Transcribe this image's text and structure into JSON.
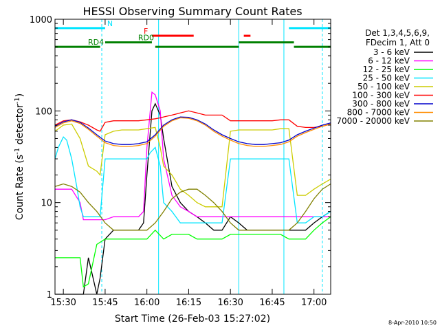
{
  "chart_data": {
    "type": "line",
    "title": "HESSI Observing Summary Count Rates",
    "xlabel": "Start Time (26-Feb-03 15:27:02)",
    "ylabel_main": "Count Rate (s",
    "ylabel_sup1": "-1",
    "ylabel_mid": " detector",
    "ylabel_sup2": "-1",
    "ylabel_end": ")",
    "y_scale": "log",
    "ylim": [
      1,
      1000
    ],
    "xlim_minutes": [
      15.45,
      17.1
    ],
    "x_ticks": [
      {
        "label": "15:30",
        "value": 15.5
      },
      {
        "label": "15:45",
        "value": 15.75
      },
      {
        "label": "16:00",
        "value": 16.0
      },
      {
        "label": "16:15",
        "value": 16.25
      },
      {
        "label": "16:30",
        "value": 16.5
      },
      {
        "label": "16:45",
        "value": 16.75
      },
      {
        "label": "17:00",
        "value": 17.0
      }
    ],
    "y_ticks": [
      {
        "label": "1",
        "value": 1
      },
      {
        "label": "10",
        "value": 10
      },
      {
        "label": "100",
        "value": 100
      },
      {
        "label": "1000",
        "value": 1000
      }
    ],
    "legend_header": [
      "Det 1,3,4,5,6,9,",
      "FDecim 1, Att 0"
    ],
    "legend_position": "right",
    "series": [
      {
        "name": "3 - 6 keV",
        "color": "#000000",
        "x": [
          15.45,
          15.5,
          15.55,
          15.6,
          15.62,
          15.65,
          15.7,
          15.72,
          15.75,
          15.8,
          15.85,
          15.9,
          15.95,
          15.98,
          16.0,
          16.03,
          16.05,
          16.08,
          16.1,
          16.15,
          16.2,
          16.25,
          16.3,
          16.35,
          16.4,
          16.45,
          16.5,
          16.55,
          16.6,
          16.65,
          16.7,
          16.75,
          16.8,
          16.85,
          16.9,
          16.95,
          17.0,
          17.05,
          17.1
        ],
        "y": [
          1,
          1,
          1,
          1,
          1,
          2.5,
          1,
          1.5,
          4,
          5,
          5,
          5,
          5,
          6,
          20,
          100,
          120,
          90,
          50,
          15,
          10,
          8,
          7,
          6,
          5,
          5,
          7,
          6,
          5,
          5,
          5,
          5,
          5,
          5,
          5,
          5,
          6,
          7,
          8
        ]
      },
      {
        "name": "6 - 12 keV",
        "color": "#ff00ff",
        "x": [
          15.45,
          15.5,
          15.55,
          15.6,
          15.62,
          15.65,
          15.7,
          15.75,
          15.8,
          15.85,
          15.9,
          15.95,
          15.98,
          16.0,
          16.03,
          16.05,
          16.08,
          16.1,
          16.15,
          16.2,
          16.25,
          16.3,
          16.35,
          16.4,
          16.45,
          16.5,
          16.55,
          16.6,
          16.65,
          16.7,
          16.75,
          16.8,
          16.85,
          16.9,
          16.95,
          17.0,
          17.05,
          17.1
        ],
        "y": [
          14,
          14,
          14,
          10,
          6.5,
          6.5,
          6.5,
          6.5,
          7,
          7,
          7,
          7,
          8,
          40,
          160,
          150,
          100,
          30,
          12,
          9,
          8,
          7,
          7,
          7,
          7,
          7,
          7,
          7,
          7,
          7,
          7,
          7,
          7,
          7,
          7,
          7,
          7,
          7
        ]
      },
      {
        "name": "12 - 25 keV",
        "color": "#00ff00",
        "x": [
          15.45,
          15.5,
          15.55,
          15.6,
          15.62,
          15.65,
          15.7,
          15.75,
          15.8,
          15.85,
          15.9,
          15.95,
          16.0,
          16.05,
          16.1,
          16.15,
          16.2,
          16.25,
          16.3,
          16.35,
          16.4,
          16.45,
          16.5,
          16.55,
          16.6,
          16.65,
          16.7,
          16.75,
          16.8,
          16.85,
          16.9,
          16.95,
          17.0,
          17.05,
          17.1
        ],
        "y": [
          2.5,
          2.5,
          2.5,
          2.5,
          1.2,
          1.3,
          3.5,
          4,
          4,
          4,
          4,
          4,
          4,
          5,
          4,
          4.5,
          4.5,
          4.5,
          4,
          4,
          4,
          4,
          4.5,
          4.5,
          4.5,
          4.5,
          4.5,
          4.5,
          4.5,
          4,
          4,
          4,
          5,
          6,
          7
        ]
      },
      {
        "name": "25 - 50 keV",
        "color": "#00e5ff",
        "x": [
          15.45,
          15.47,
          15.5,
          15.52,
          15.55,
          15.58,
          15.6,
          15.62,
          15.65,
          15.7,
          15.72,
          15.75,
          15.8,
          15.85,
          15.9,
          15.95,
          16.0,
          16.02,
          16.05,
          16.08,
          16.1,
          16.15,
          16.2,
          16.25,
          16.3,
          16.35,
          16.4,
          16.45,
          16.5,
          16.55,
          16.6,
          16.65,
          16.7,
          16.75,
          16.8,
          16.85,
          16.9,
          16.95,
          17.0,
          17.05,
          17.1
        ],
        "y": [
          30,
          40,
          52,
          48,
          30,
          15,
          9,
          7,
          7,
          7,
          7,
          30,
          30,
          30,
          30,
          30,
          30,
          35,
          40,
          25,
          10,
          8,
          6,
          6,
          6,
          6,
          6,
          6,
          30,
          30,
          30,
          30,
          30,
          30,
          30,
          30,
          6,
          6,
          7,
          7,
          8
        ]
      },
      {
        "name": "50 - 100 keV",
        "color": "#cccc00",
        "x": [
          15.45,
          15.5,
          15.55,
          15.6,
          15.65,
          15.7,
          15.72,
          15.75,
          15.8,
          15.85,
          15.9,
          15.95,
          16.0,
          16.05,
          16.08,
          16.1,
          16.15,
          16.2,
          16.25,
          16.3,
          16.35,
          16.4,
          16.45,
          16.5,
          16.55,
          16.6,
          16.65,
          16.7,
          16.75,
          16.8,
          16.85,
          16.9,
          16.95,
          17.0,
          17.05,
          17.1
        ],
        "y": [
          60,
          70,
          72,
          50,
          25,
          22,
          20,
          55,
          60,
          62,
          62,
          62,
          64,
          66,
          40,
          25,
          20,
          14,
          12,
          10,
          9,
          9,
          9,
          60,
          62,
          62,
          62,
          62,
          62,
          64,
          64,
          12,
          12,
          14,
          16,
          18
        ]
      },
      {
        "name": "100 - 300 keV",
        "color": "#ff0000",
        "x": [
          15.45,
          15.5,
          15.55,
          15.6,
          15.65,
          15.7,
          15.72,
          15.75,
          15.8,
          15.85,
          15.9,
          15.95,
          16.0,
          16.05,
          16.08,
          16.1,
          16.15,
          16.2,
          16.25,
          16.3,
          16.35,
          16.4,
          16.45,
          16.5,
          16.55,
          16.6,
          16.65,
          16.7,
          16.75,
          16.8,
          16.85,
          16.9,
          16.95,
          17.0,
          17.05,
          17.1
        ],
        "y": [
          70,
          78,
          80,
          76,
          70,
          62,
          60,
          75,
          78,
          78,
          78,
          78,
          80,
          82,
          84,
          86,
          90,
          95,
          100,
          95,
          90,
          90,
          90,
          78,
          78,
          78,
          78,
          78,
          78,
          80,
          80,
          68,
          66,
          66,
          68,
          72
        ]
      },
      {
        "name": "300 - 800 keV",
        "color": "#0000cc",
        "x": [
          15.45,
          15.5,
          15.55,
          15.6,
          15.65,
          15.7,
          15.75,
          15.8,
          15.85,
          15.9,
          15.95,
          16.0,
          16.05,
          16.1,
          16.15,
          16.2,
          16.25,
          16.3,
          16.35,
          16.4,
          16.45,
          16.5,
          16.55,
          16.6,
          16.65,
          16.7,
          16.75,
          16.8,
          16.85,
          16.9,
          16.95,
          17.0,
          17.05,
          17.1
        ],
        "y": [
          68,
          76,
          80,
          75,
          65,
          55,
          47,
          44,
          43,
          43,
          44,
          46,
          55,
          70,
          80,
          86,
          85,
          80,
          72,
          62,
          55,
          50,
          46,
          44,
          43,
          43,
          44,
          45,
          48,
          55,
          60,
          65,
          70,
          74
        ]
      },
      {
        "name": "800 - 7000 keV",
        "color": "#ff8c00",
        "x": [
          15.45,
          15.5,
          15.55,
          15.6,
          15.65,
          15.7,
          15.75,
          15.8,
          15.85,
          15.9,
          15.95,
          16.0,
          16.05,
          16.1,
          16.15,
          16.2,
          16.25,
          16.3,
          16.35,
          16.4,
          16.45,
          16.5,
          16.55,
          16.6,
          16.65,
          16.7,
          16.75,
          16.8,
          16.85,
          16.9,
          16.95,
          17.0,
          17.05,
          17.1
        ],
        "y": [
          66,
          74,
          78,
          73,
          63,
          53,
          45,
          42,
          41,
          41,
          42,
          44,
          53,
          68,
          78,
          84,
          83,
          78,
          70,
          60,
          53,
          48,
          44,
          42,
          41,
          41,
          42,
          43,
          46,
          53,
          58,
          63,
          68,
          72
        ]
      },
      {
        "name": "7000 - 20000 keV",
        "color": "#808000",
        "x": [
          15.45,
          15.5,
          15.55,
          15.6,
          15.65,
          15.7,
          15.75,
          15.8,
          15.85,
          15.9,
          15.95,
          16.0,
          16.05,
          16.1,
          16.15,
          16.2,
          16.25,
          16.3,
          16.35,
          16.4,
          16.45,
          16.5,
          16.55,
          16.6,
          16.65,
          16.7,
          16.75,
          16.8,
          16.85,
          16.9,
          16.95,
          17.0,
          17.05,
          17.1
        ],
        "y": [
          15,
          16,
          15,
          13,
          10,
          8,
          6,
          5,
          5,
          5,
          5,
          5,
          6,
          8,
          11,
          13,
          14,
          14,
          12,
          10,
          8,
          6,
          5,
          5,
          5,
          5,
          5,
          5,
          5,
          6,
          8,
          11,
          14,
          16
        ]
      }
    ],
    "annotations": [
      {
        "label": "N",
        "color": "#00e5ff",
        "x_start": 15.45,
        "x_end": 15.75,
        "y": 800
      },
      {
        "label": "",
        "color": "#00e5ff",
        "x_start": 16.85,
        "x_end": 17.1,
        "y": 800
      },
      {
        "label": "F",
        "color": "#ff0000",
        "x_start": 16.03,
        "x_end": 16.28,
        "y": 660
      },
      {
        "label": "",
        "color": "#ff0000",
        "x_start": 16.58,
        "x_end": 16.62,
        "y": 660
      },
      {
        "label": "RD0",
        "color": "#008000",
        "x_start": 15.75,
        "x_end": 16.03,
        "y": 560
      },
      {
        "label": "RD4",
        "color": "#008000",
        "x_start": 15.45,
        "x_end": 15.72,
        "y": 500
      },
      {
        "label": "",
        "color": "#008000",
        "x_start": 16.05,
        "x_end": 16.55,
        "y": 500
      },
      {
        "label": "",
        "color": "#008000",
        "x_start": 16.55,
        "x_end": 16.88,
        "y": 560
      },
      {
        "label": "",
        "color": "#008000",
        "x_start": 16.88,
        "x_end": 17.1,
        "y": 500
      }
    ],
    "vlines": [
      {
        "x": 15.45,
        "color": "#00e5ff",
        "dashed": false
      },
      {
        "x": 15.73,
        "color": "#00e5ff",
        "dashed": true
      },
      {
        "x": 16.07,
        "color": "#00e5ff",
        "dashed": false
      },
      {
        "x": 16.55,
        "color": "#00e5ff",
        "dashed": false
      },
      {
        "x": 16.82,
        "color": "#00e5ff",
        "dashed": false
      },
      {
        "x": 17.05,
        "color": "#00e5ff",
        "dashed": true
      }
    ],
    "timestamp": "8-Apr-2010 10:50"
  }
}
